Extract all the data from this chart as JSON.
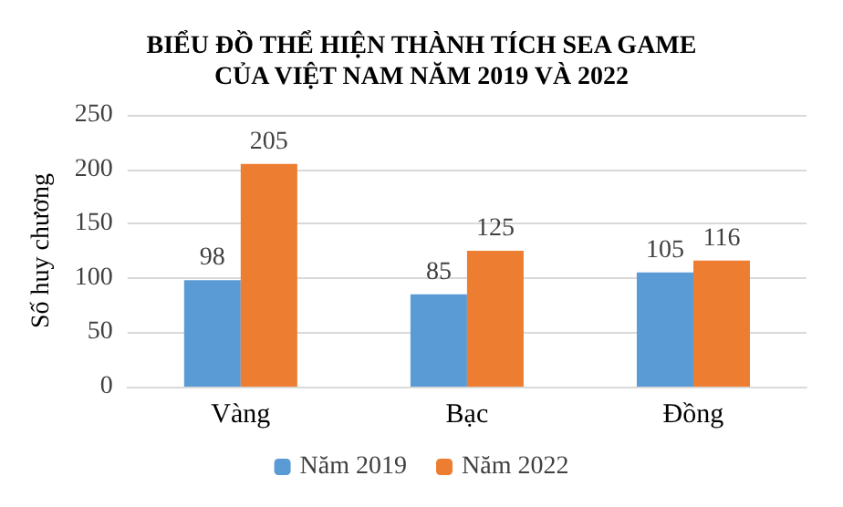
{
  "chart_data": {
    "type": "bar",
    "title": "BIỂU ĐỒ THỂ HIỆN THÀNH TÍCH SEA GAME\nCỦA VIỆT NAM NĂM 2019 VÀ 2022",
    "ylabel": "Số huy chương",
    "categories": [
      "Vàng",
      "Bạc",
      "Đồng"
    ],
    "series": [
      {
        "name": "Năm 2019",
        "color": "#5b9bd5",
        "values": [
          98,
          85,
          105
        ]
      },
      {
        "name": "Năm 2022",
        "color": "#ed7d31",
        "values": [
          205,
          125,
          116
        ]
      }
    ],
    "ylim": [
      0,
      250
    ],
    "yticks": [
      0,
      50,
      100,
      150,
      200,
      250
    ],
    "grid": "y",
    "legend": "bottom",
    "data_labels": true
  }
}
